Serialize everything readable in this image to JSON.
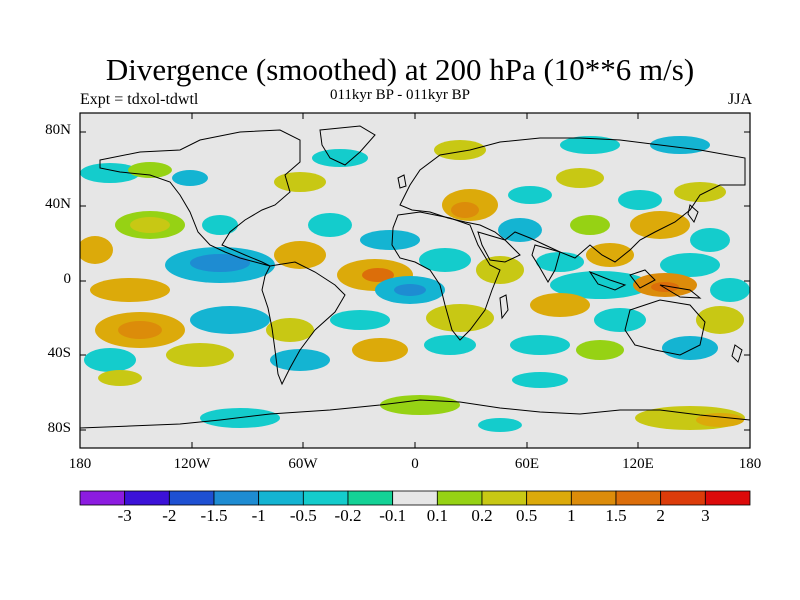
{
  "title": "Divergence (smoothed) at 200 hPa (10**6 m/s)",
  "subtitle_left": "Expt = tdxol-tdwtl",
  "subtitle_center": "011kyr BP - 011kyr BP",
  "subtitle_right": "JJA",
  "lat_ticks": [
    "80N",
    "40N",
    "0",
    "40S",
    "80S"
  ],
  "lon_ticks": [
    "180",
    "120W",
    "60W",
    "0",
    "60E",
    "120E",
    "180"
  ],
  "colorbar": {
    "labels": [
      "-3",
      "-2",
      "-1.5",
      "-1",
      "-0.5",
      "-0.2",
      "-0.1",
      "0.1",
      "0.2",
      "0.5",
      "1",
      "1.5",
      "2",
      "3"
    ],
    "colors": [
      "#8c1ce0",
      "#3c12d8",
      "#1e50d2",
      "#1e8cd2",
      "#14b4d2",
      "#14cccc",
      "#14d296",
      "#e6e6e6",
      "#96d214",
      "#c8c814",
      "#dcaa0a",
      "#dc8c0a",
      "#dc6e0a",
      "#dc3c0a",
      "#dc0a0a"
    ]
  },
  "map_data": {
    "projection": "cylindrical-equidistant",
    "lon_range": [
      -180,
      180
    ],
    "lat_range": [
      -90,
      90
    ],
    "background_color": "#e6e6e6"
  }
}
